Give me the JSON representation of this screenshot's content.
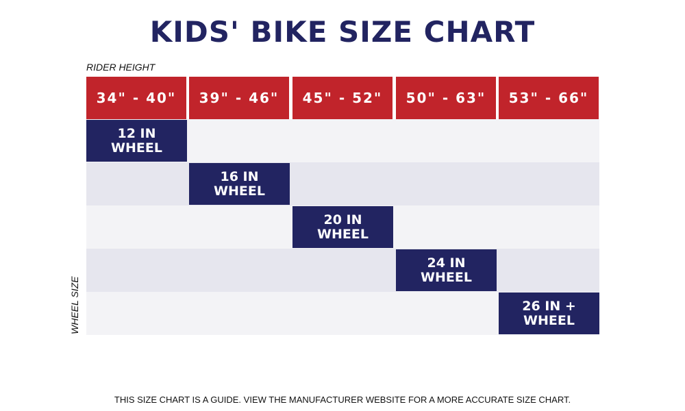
{
  "colors": {
    "title": "#222461",
    "header_bg": "#c1242b",
    "wheel_bg": "#222461",
    "row_light": "#f3f3f6",
    "row_dark": "#e6e6ee"
  },
  "chart_data": {
    "type": "table",
    "title": "KIDS' BIKE SIZE CHART",
    "xlabel": "RIDER HEIGHT",
    "ylabel": "WHEEL SIZE",
    "columns": [
      "34\" - 40\"",
      "39\" - 46\"",
      "45\" - 52\"",
      "50\" - 63\"",
      "53\" - 66\""
    ],
    "rows": [
      {
        "wheel": "12 IN\nWHEEL",
        "height_column": 0
      },
      {
        "wheel": "16 IN\nWHEEL",
        "height_column": 1
      },
      {
        "wheel": "20 IN\nWHEEL",
        "height_column": 2
      },
      {
        "wheel": "24 IN\nWHEEL",
        "height_column": 3
      },
      {
        "wheel": "26 IN +\nWHEEL",
        "height_column": 4
      }
    ]
  },
  "footnote": "THIS SIZE CHART IS A GUIDE. VIEW THE MANUFACTURER WEBSITE FOR A MORE ACCURATE SIZE CHART."
}
